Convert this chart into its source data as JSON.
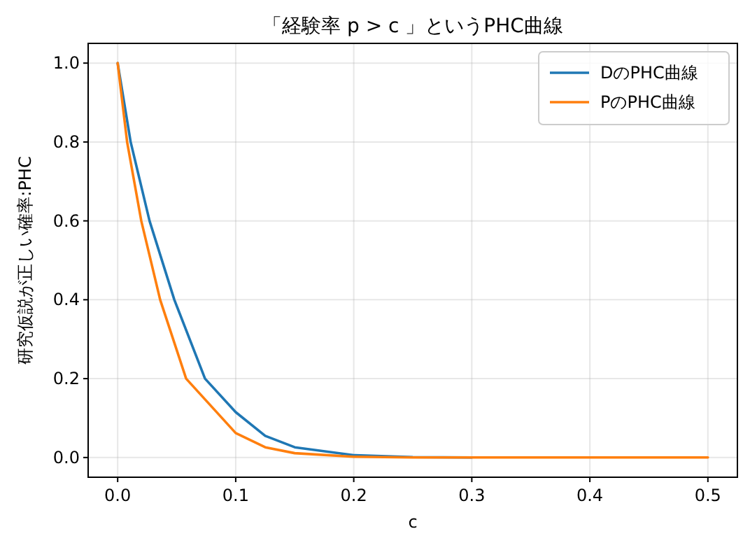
{
  "chart_data": {
    "type": "line",
    "title": "「経験率 p > c 」というPHC曲線",
    "xlabel": "c",
    "ylabel": "研究仮説が正しい確率:PHC",
    "series": [
      {
        "name": "DのPHC曲線",
        "color": "#1f77b4",
        "x": [
          0,
          0.011,
          0.027,
          0.048,
          0.074,
          0.1,
          0.125,
          0.15,
          0.2,
          0.25,
          0.3
        ],
        "values": [
          1,
          0.8,
          0.6,
          0.4,
          0.2,
          0.115,
          0.055,
          0.026,
          0.006,
          0.001,
          0
        ]
      },
      {
        "name": "PのPHC曲線",
        "color": "#ff7f0e",
        "x": [
          0,
          0.008,
          0.02,
          0.036,
          0.058,
          0.1,
          0.125,
          0.15,
          0.2,
          0.25,
          0.3,
          0.4,
          0.5
        ],
        "values": [
          1,
          0.8,
          0.6,
          0.4,
          0.2,
          0.062,
          0.026,
          0.011,
          0.002,
          0,
          0,
          0,
          0
        ]
      }
    ],
    "xlim": [
      -0.025,
      0.525
    ],
    "ylim": [
      -0.05,
      1.05
    ],
    "xticks": [
      {
        "value": 0,
        "label": "0.0"
      },
      {
        "value": 0.1,
        "label": "0.1"
      },
      {
        "value": 0.2,
        "label": "0.2"
      },
      {
        "value": 0.3,
        "label": "0.3"
      },
      {
        "value": 0.4,
        "label": "0.4"
      },
      {
        "value": 0.5,
        "label": "0.5"
      }
    ],
    "yticks": [
      {
        "value": 0,
        "label": "0.0"
      },
      {
        "value": 0.2,
        "label": "0.2"
      },
      {
        "value": 0.4,
        "label": "0.4"
      },
      {
        "value": 0.6,
        "label": "0.6"
      },
      {
        "value": 0.8,
        "label": "0.8"
      },
      {
        "value": 1,
        "label": "1.0"
      }
    ],
    "grid": true,
    "legend": "top right"
  }
}
